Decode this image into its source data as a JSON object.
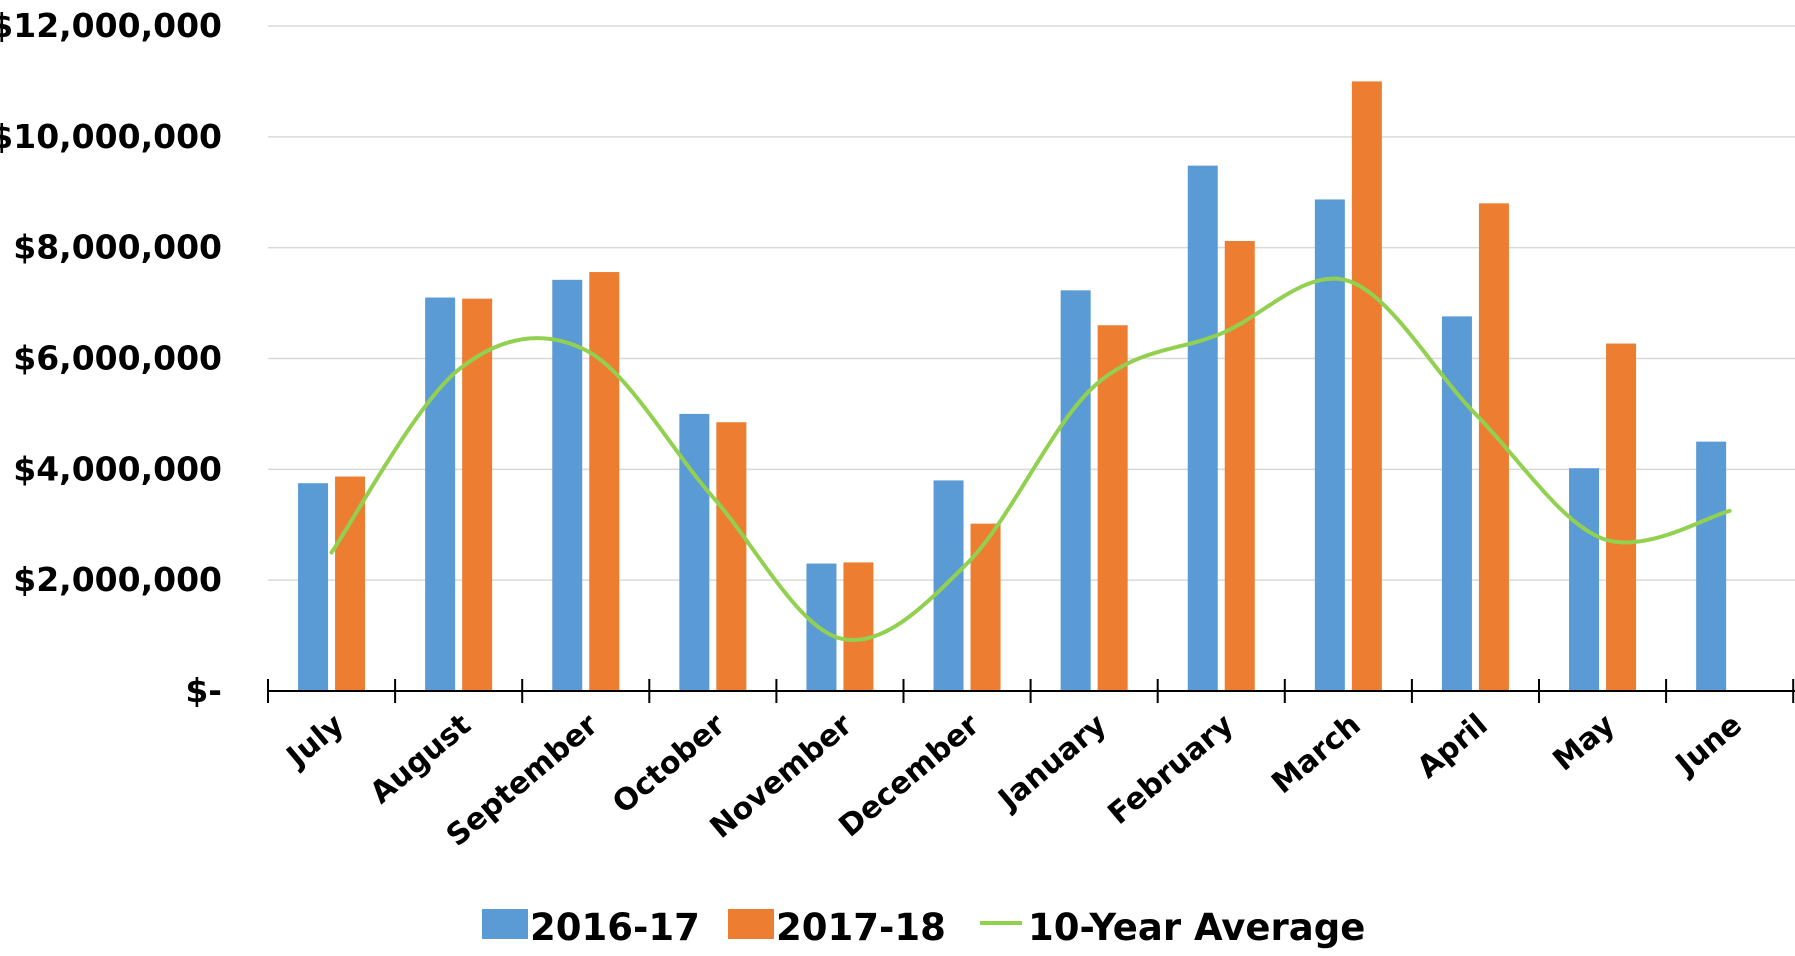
{
  "chart_data": {
    "type": "bar",
    "categories": [
      "July",
      "August",
      "September",
      "October",
      "November",
      "December",
      "January",
      "February",
      "March",
      "April",
      "May",
      "June"
    ],
    "series": [
      {
        "name": "2016-17",
        "kind": "bar",
        "color": "#5B9BD5",
        "values": [
          3750000,
          7100000,
          7420000,
          5000000,
          2300000,
          3800000,
          7230000,
          9480000,
          8870000,
          6760000,
          4020000,
          4500000
        ]
      },
      {
        "name": "2017-18",
        "kind": "bar",
        "color": "#ED7D31",
        "values": [
          3870000,
          7080000,
          7560000,
          4850000,
          2320000,
          3020000,
          6600000,
          8120000,
          11000000,
          8800000,
          6270000,
          null
        ]
      },
      {
        "name": "10-Year Average",
        "kind": "line",
        "color": "#92D050",
        "values": [
          2500000,
          5800000,
          6150000,
          3500000,
          950000,
          2300000,
          5500000,
          6450000,
          7400000,
          5000000,
          2750000,
          3250000
        ]
      }
    ],
    "ytick_labels": [
      "$-",
      "$2,000,000",
      "$4,000,000",
      "$6,000,000",
      "$8,000,000",
      "$10,000,000",
      "$12,000,000"
    ],
    "ytick_values": [
      0,
      2000000,
      4000000,
      6000000,
      8000000,
      10000000,
      12000000
    ],
    "ylim": [
      0,
      12000000
    ],
    "grid": true,
    "legend_position": "bottom"
  }
}
